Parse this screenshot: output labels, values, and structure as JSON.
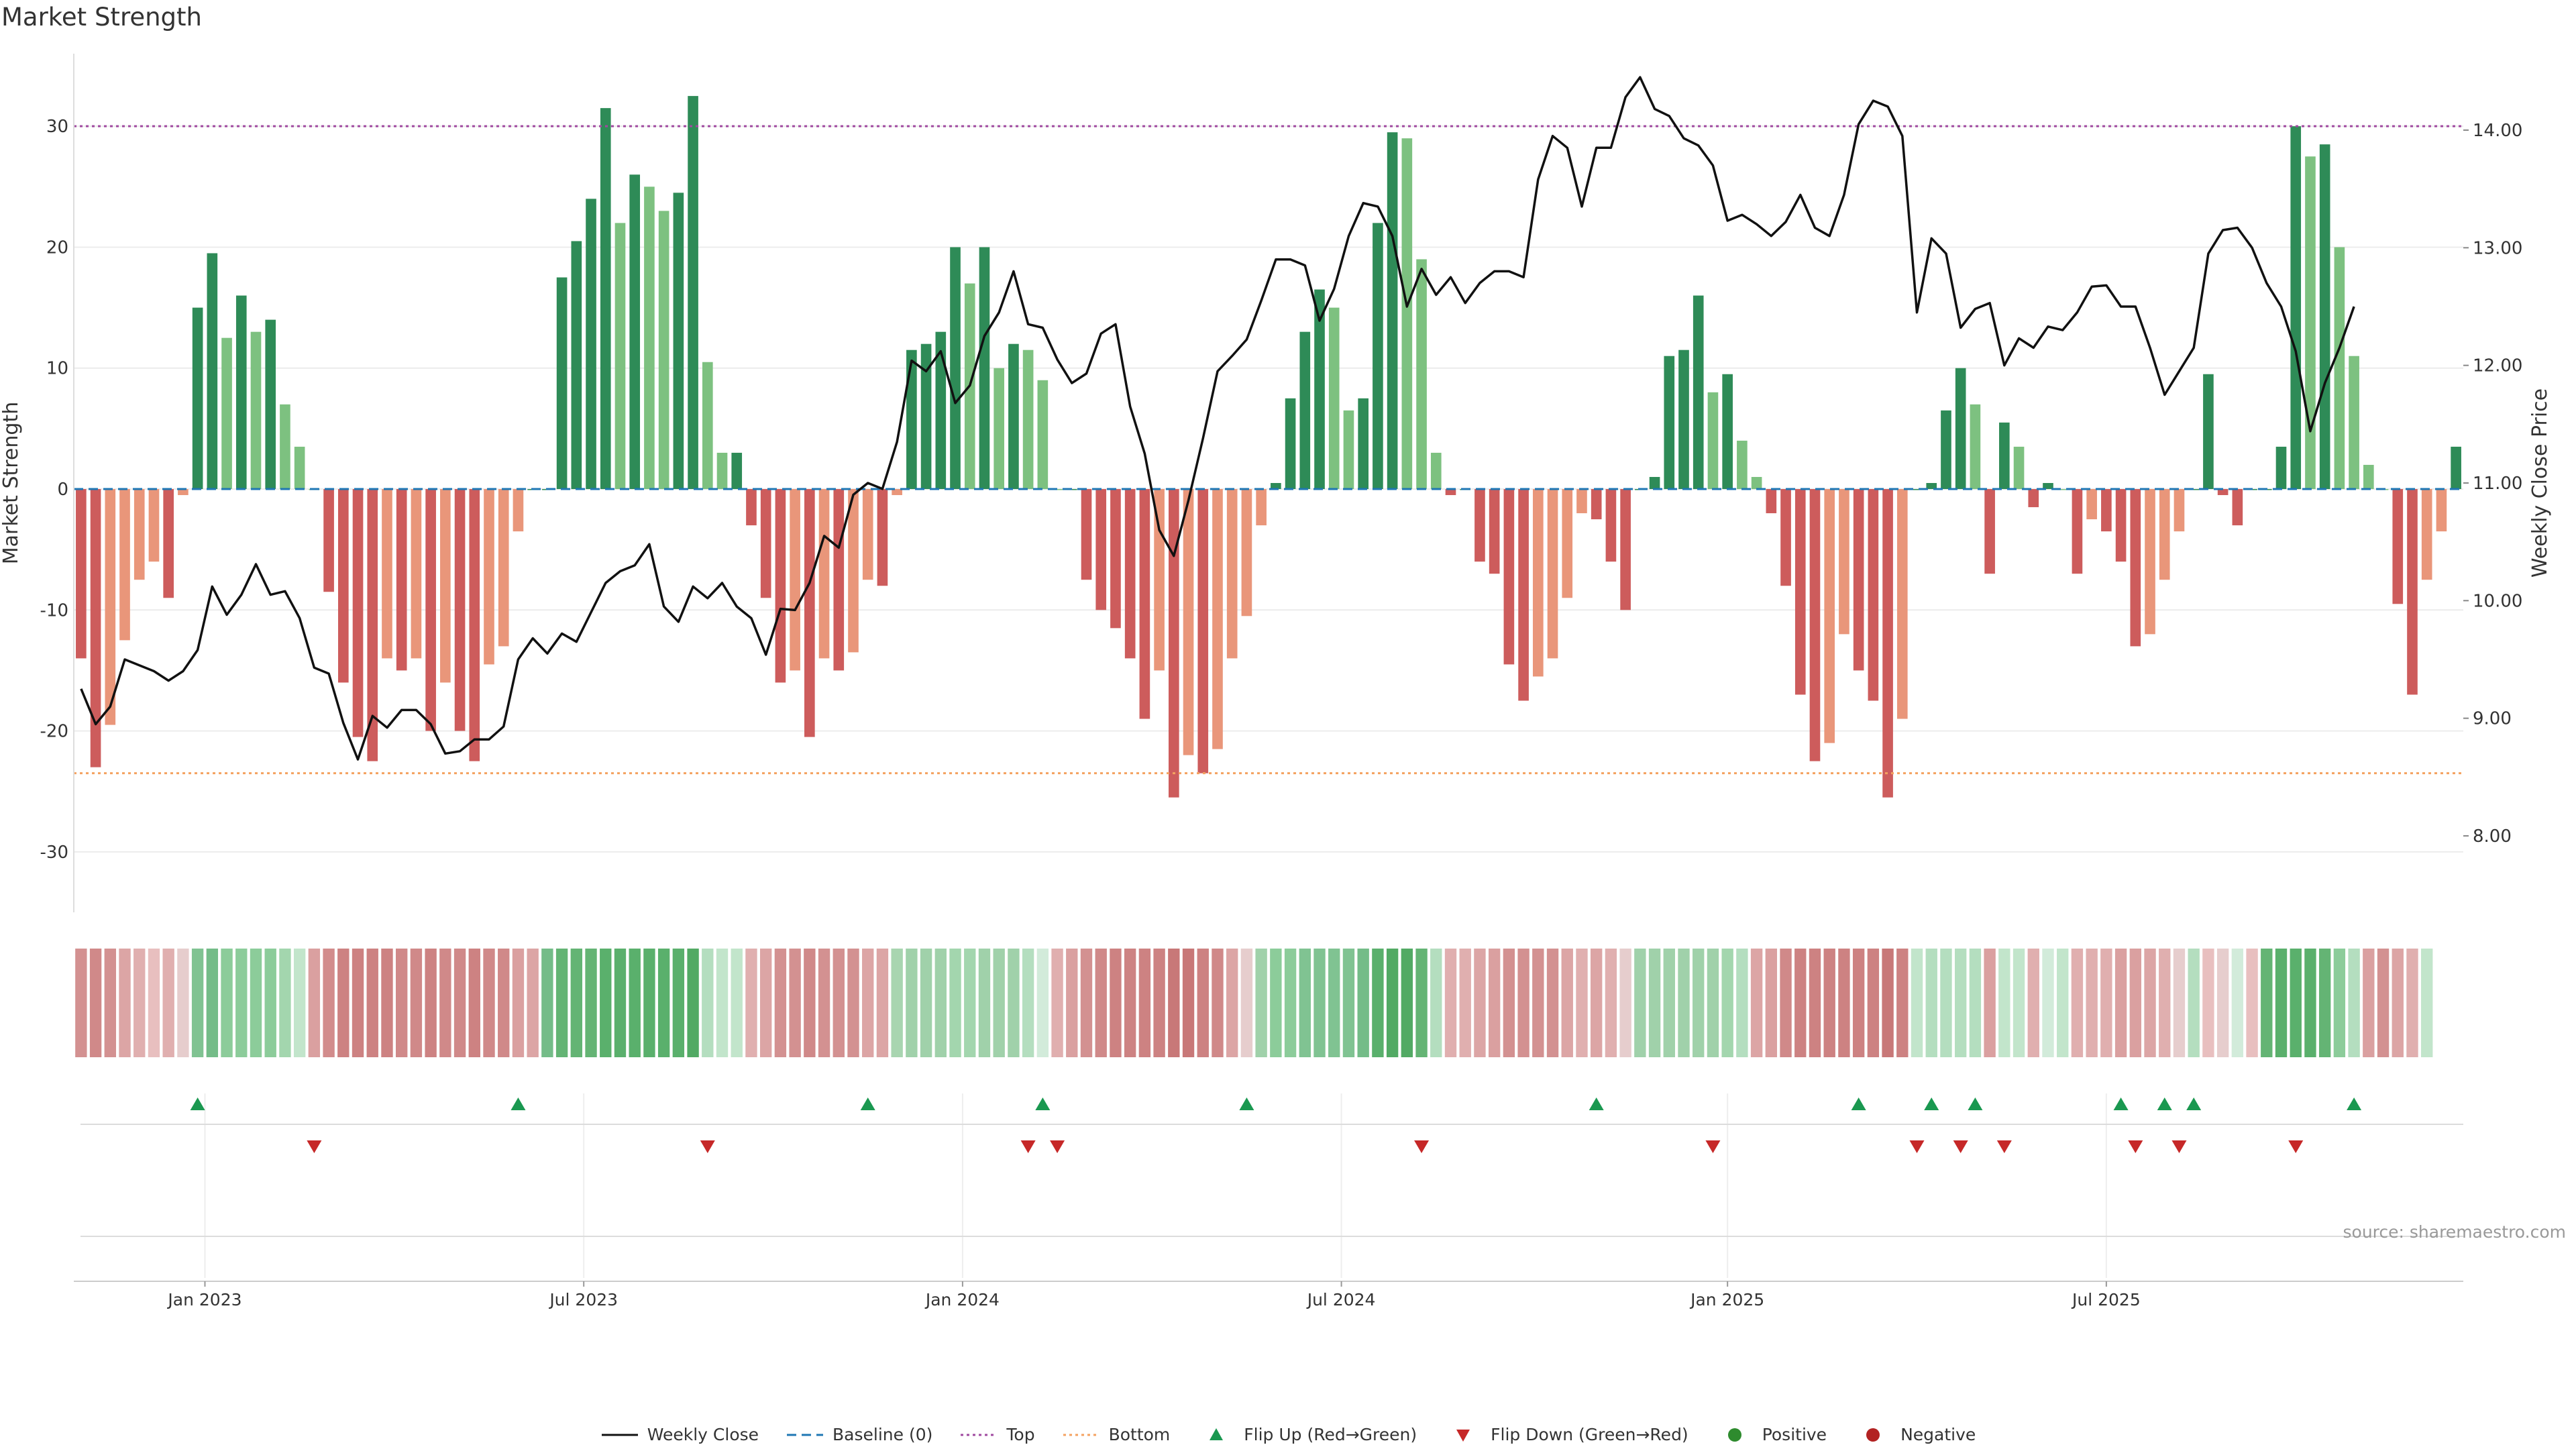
{
  "title": "Market Strength",
  "source": "source: sharemaestro.com",
  "colors": {
    "strong_green": "#2e8b57",
    "light_green": "#7dc180",
    "strong_red": "#cd5c5c",
    "light_red": "#e9967a",
    "price_line": "#111111",
    "top_line": "#a04aa0",
    "bottom_line": "#f4a261",
    "baseline": "#1f77b4",
    "flip_up": "#1a9850",
    "flip_down": "#c62828",
    "positive": "#2e8b2e",
    "negative": "#b22222"
  },
  "legend": [
    {
      "label": "Weekly Close",
      "symbol": "line"
    },
    {
      "label": "Baseline (0)",
      "symbol": "dash"
    },
    {
      "label": "Top",
      "symbol": "dot-purple"
    },
    {
      "label": "Bottom",
      "symbol": "dot-orange"
    },
    {
      "label": "Flip Up (Red→Green)",
      "symbol": "tri-up"
    },
    {
      "label": "Flip Down (Green→Red)",
      "symbol": "tri-down"
    },
    {
      "label": "Positive",
      "symbol": "circle-green"
    },
    {
      "label": "Negative",
      "symbol": "circle-red"
    }
  ],
  "chart_data": {
    "type": "bar",
    "title": "Market Strength",
    "ylabel": "Market Strength",
    "y2label": "Weekly Close Price",
    "ylim": [
      -35,
      36
    ],
    "y2lim": [
      7.35,
      14.65
    ],
    "yticks": [
      -30,
      -20,
      -10,
      0,
      10,
      20,
      30
    ],
    "y2ticks": [
      "8.00",
      "9.00",
      "10.00",
      "11.00",
      "12.00",
      "13.00",
      "14.00"
    ],
    "top_level": 30,
    "bottom_level": -23.5,
    "x_ticks": [
      {
        "label": "Jan 2023",
        "week": 8.5
      },
      {
        "label": "Jul 2023",
        "week": 34.5
      },
      {
        "label": "Jan 2024",
        "week": 60.5
      },
      {
        "label": "Jul 2024",
        "week": 86.5
      },
      {
        "label": "Jan 2025",
        "week": 113
      },
      {
        "label": "Jul 2025",
        "week": 139
      }
    ],
    "strength": [
      -14,
      -23,
      -19.5,
      -12.5,
      -7.5,
      -6,
      -9,
      -0.5,
      15,
      19.5,
      12.5,
      16,
      13,
      14,
      7,
      3.5,
      0,
      -8.5,
      -16,
      -20.5,
      -22.5,
      -14,
      -15,
      -14,
      -20,
      -16,
      -20,
      -22.5,
      -14.5,
      -13,
      -3.5,
      0,
      0,
      17.5,
      20.5,
      24,
      31.5,
      22,
      26,
      25,
      23,
      24.5,
      32.5,
      10.5,
      3,
      3,
      -3,
      -9,
      -16,
      -15,
      -20.5,
      -14,
      -15,
      -13.5,
      -7.5,
      -8,
      -0.5,
      11.5,
      12,
      13,
      20,
      17,
      20,
      10,
      12,
      11.5,
      9,
      0,
      0,
      -7.5,
      -10,
      -11.5,
      -14,
      -19,
      -15,
      -25.5,
      -22,
      -23.5,
      -21.5,
      -14,
      -10.5,
      -3,
      0.5,
      7.5,
      13,
      16.5,
      15,
      6.5,
      7.5,
      22,
      29.5,
      29,
      19,
      3,
      -0.5,
      0,
      -6,
      -7,
      -14.5,
      -17.5,
      -15.5,
      -14,
      -9,
      -2,
      -2.5,
      -6,
      -10,
      0,
      1,
      11,
      11.5,
      16,
      8,
      9.5,
      4,
      1,
      -2,
      -8,
      -17,
      -22.5,
      -21,
      -12,
      -15,
      -17.5,
      -25.5,
      -19,
      0,
      0.5,
      6.5,
      10,
      7,
      -7,
      5.5,
      3.5,
      -1.5,
      0.5,
      0,
      -7,
      -2.5,
      -3.5,
      -6,
      -13,
      -12,
      -7.5,
      -3.5,
      0,
      9.5,
      -0.5,
      -3,
      0,
      0,
      3.5,
      30,
      27.5,
      28.5,
      20,
      11,
      2,
      0,
      -9.5,
      -17,
      -7.5,
      -3.5,
      3.5
    ],
    "close_price": [
      9.25,
      8.95,
      9.1,
      9.5,
      9.45,
      9.4,
      9.32,
      9.4,
      9.58,
      10.12,
      9.88,
      10.05,
      10.31,
      10.05,
      10.08,
      9.85,
      9.43,
      9.38,
      8.96,
      8.65,
      9.02,
      8.92,
      9.07,
      9.07,
      8.95,
      8.7,
      8.72,
      8.82,
      8.82,
      8.93,
      9.5,
      9.68,
      9.55,
      9.72,
      9.65,
      9.9,
      10.15,
      10.25,
      10.3,
      10.48,
      9.95,
      9.82,
      10.12,
      10.02,
      10.15,
      9.95,
      9.85,
      9.54,
      9.93,
      9.92,
      10.15,
      10.55,
      10.45,
      10.9,
      11.0,
      10.95,
      11.35,
      12.04,
      11.95,
      12.12,
      11.68,
      11.83,
      12.25,
      12.45,
      12.8,
      12.35,
      12.32,
      12.05,
      11.85,
      11.93,
      12.27,
      12.35,
      11.65,
      11.25,
      10.6,
      10.38,
      10.85,
      11.38,
      11.95,
      12.08,
      12.22,
      12.55,
      12.9,
      12.9,
      12.85,
      12.38,
      12.65,
      13.1,
      13.38,
      13.35,
      13.1,
      12.5,
      12.82,
      12.6,
      12.75,
      12.53,
      12.7,
      12.8,
      12.8,
      12.75,
      13.58,
      13.95,
      13.85,
      13.35,
      13.85,
      13.85,
      14.28,
      14.45,
      14.18,
      14.12,
      13.93,
      13.87,
      13.7,
      13.23,
      13.28,
      13.2,
      13.1,
      13.22,
      13.45,
      13.17,
      13.1,
      13.45,
      14.05,
      14.25,
      14.2,
      13.95,
      12.45,
      13.08,
      12.95,
      12.32,
      12.48,
      12.53,
      12.0,
      12.23,
      12.15,
      12.33,
      12.3,
      12.45,
      12.67,
      12.68,
      12.5,
      12.5,
      12.15,
      11.75,
      11.95,
      12.15,
      12.95,
      13.15,
      13.17,
      13.0,
      12.7,
      12.5,
      12.12,
      11.44,
      11.85,
      12.15,
      12.5
    ],
    "strip_rgb": [
      [
        211,
        145,
        145
      ],
      [
        208,
        137,
        137
      ],
      [
        211,
        145,
        145
      ],
      [
        220,
        165,
        165
      ],
      [
        224,
        175,
        175
      ],
      [
        232,
        191,
        191
      ],
      [
        224,
        175,
        175
      ],
      [
        230,
        205,
        205
      ],
      [
        128,
        195,
        146
      ],
      [
        116,
        188,
        136
      ],
      [
        140,
        204,
        154
      ],
      [
        140,
        204,
        154
      ],
      [
        140,
        204,
        154
      ],
      [
        140,
        204,
        154
      ],
      [
        163,
        214,
        174
      ],
      [
        194,
        229,
        203
      ],
      [
        218,
        160,
        160
      ],
      [
        210,
        140,
        140
      ],
      [
        205,
        130,
        130
      ],
      [
        205,
        130,
        130
      ],
      [
        205,
        130,
        130
      ],
      [
        205,
        130,
        130
      ],
      [
        208,
        137,
        137
      ],
      [
        208,
        137,
        137
      ],
      [
        205,
        130,
        130
      ],
      [
        208,
        137,
        137
      ],
      [
        208,
        137,
        137
      ],
      [
        205,
        130,
        130
      ],
      [
        208,
        137,
        137
      ],
      [
        208,
        137,
        137
      ],
      [
        218,
        160,
        160
      ],
      [
        220,
        165,
        165
      ],
      [
        116,
        188,
        136
      ],
      [
        100,
        180,
        116
      ],
      [
        100,
        180,
        116
      ],
      [
        100,
        180,
        116
      ],
      [
        90,
        176,
        108
      ],
      [
        90,
        176,
        108
      ],
      [
        90,
        176,
        108
      ],
      [
        90,
        176,
        108
      ],
      [
        90,
        176,
        108
      ],
      [
        90,
        176,
        108
      ],
      [
        82,
        170,
        100
      ],
      [
        180,
        222,
        191
      ],
      [
        194,
        229,
        203
      ],
      [
        194,
        229,
        203
      ],
      [
        224,
        175,
        175
      ],
      [
        220,
        165,
        165
      ],
      [
        211,
        145,
        145
      ],
      [
        211,
        145,
        145
      ],
      [
        208,
        137,
        137
      ],
      [
        211,
        145,
        145
      ],
      [
        211,
        145,
        145
      ],
      [
        211,
        145,
        145
      ],
      [
        220,
        165,
        165
      ],
      [
        220,
        165,
        165
      ],
      [
        168,
        213,
        176
      ],
      [
        160,
        209,
        170
      ],
      [
        160,
        209,
        170
      ],
      [
        160,
        209,
        170
      ],
      [
        163,
        214,
        174
      ],
      [
        163,
        214,
        174
      ],
      [
        160,
        209,
        170
      ],
      [
        160,
        209,
        170
      ],
      [
        160,
        209,
        170
      ],
      [
        180,
        222,
        191
      ],
      [
        210,
        235,
        218
      ],
      [
        224,
        175,
        175
      ],
      [
        218,
        160,
        160
      ],
      [
        211,
        145,
        145
      ],
      [
        208,
        137,
        137
      ],
      [
        205,
        130,
        130
      ],
      [
        205,
        130,
        130
      ],
      [
        205,
        130,
        130
      ],
      [
        205,
        130,
        130
      ],
      [
        200,
        120,
        120
      ],
      [
        200,
        120,
        120
      ],
      [
        205,
        130,
        130
      ],
      [
        208,
        137,
        137
      ],
      [
        220,
        165,
        165
      ],
      [
        230,
        205,
        205
      ],
      [
        160,
        209,
        170
      ],
      [
        140,
        204,
        154
      ],
      [
        140,
        204,
        154
      ],
      [
        128,
        195,
        146
      ],
      [
        128,
        195,
        146
      ],
      [
        128,
        195,
        146
      ],
      [
        128,
        195,
        146
      ],
      [
        116,
        188,
        136
      ],
      [
        90,
        176,
        108
      ],
      [
        82,
        170,
        100
      ],
      [
        82,
        170,
        100
      ],
      [
        100,
        180,
        116
      ],
      [
        180,
        222,
        191
      ],
      [
        224,
        175,
        175
      ],
      [
        224,
        175,
        175
      ],
      [
        220,
        165,
        165
      ],
      [
        218,
        160,
        160
      ],
      [
        211,
        145,
        145
      ],
      [
        211,
        145,
        145
      ],
      [
        211,
        145,
        145
      ],
      [
        211,
        145,
        145
      ],
      [
        220,
        165,
        165
      ],
      [
        224,
        175,
        175
      ],
      [
        220,
        165,
        165
      ],
      [
        224,
        175,
        175
      ],
      [
        230,
        205,
        205
      ],
      [
        160,
        209,
        170
      ],
      [
        160,
        209,
        170
      ],
      [
        160,
        209,
        170
      ],
      [
        160,
        209,
        170
      ],
      [
        160,
        209,
        170
      ],
      [
        160,
        209,
        170
      ],
      [
        163,
        214,
        174
      ],
      [
        180,
        222,
        191
      ],
      [
        220,
        165,
        165
      ],
      [
        218,
        160,
        160
      ],
      [
        208,
        137,
        137
      ],
      [
        205,
        130,
        130
      ],
      [
        205,
        130,
        130
      ],
      [
        205,
        130,
        130
      ],
      [
        205,
        130,
        130
      ],
      [
        205,
        130,
        130
      ],
      [
        205,
        130,
        130
      ],
      [
        200,
        120,
        120
      ],
      [
        205,
        130,
        130
      ],
      [
        194,
        229,
        203
      ],
      [
        180,
        222,
        191
      ],
      [
        180,
        222,
        191
      ],
      [
        180,
        222,
        191
      ],
      [
        180,
        222,
        191
      ],
      [
        218,
        160,
        160
      ],
      [
        194,
        229,
        203
      ],
      [
        194,
        229,
        203
      ],
      [
        224,
        175,
        175
      ],
      [
        210,
        235,
        218
      ],
      [
        194,
        229,
        203
      ],
      [
        224,
        175,
        175
      ],
      [
        224,
        175,
        175
      ],
      [
        224,
        175,
        175
      ],
      [
        218,
        160,
        160
      ],
      [
        218,
        160,
        160
      ],
      [
        220,
        165,
        165
      ],
      [
        224,
        175,
        175
      ],
      [
        230,
        205,
        205
      ],
      [
        180,
        222,
        191
      ],
      [
        232,
        191,
        191
      ],
      [
        230,
        205,
        205
      ],
      [
        210,
        235,
        218
      ],
      [
        232,
        191,
        191
      ],
      [
        100,
        180,
        116
      ],
      [
        90,
        176,
        108
      ],
      [
        90,
        176,
        108
      ],
      [
        90,
        176,
        108
      ],
      [
        100,
        180,
        116
      ],
      [
        140,
        204,
        154
      ],
      [
        180,
        222,
        191
      ],
      [
        218,
        160,
        160
      ],
      [
        211,
        145,
        145
      ],
      [
        220,
        165,
        165
      ],
      [
        224,
        175,
        175
      ],
      [
        194,
        229,
        203
      ]
    ],
    "flip_up_weeks": [
      8,
      30,
      54,
      66,
      80,
      104,
      122,
      127,
      130,
      140,
      143,
      145,
      156
    ],
    "flip_down_weeks": [
      16,
      43,
      65,
      67,
      92,
      112,
      126,
      129,
      132,
      141,
      144,
      152
    ]
  }
}
